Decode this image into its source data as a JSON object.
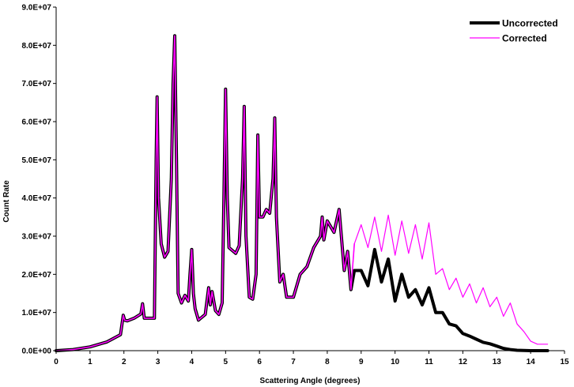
{
  "chart_data": {
    "type": "line",
    "title": "",
    "xlabel": "Scattering Angle (degrees)",
    "ylabel": "Count Rate",
    "xlim": [
      0,
      15
    ],
    "ylim": [
      0,
      90000000
    ],
    "x_ticks": [
      "0",
      "1",
      "2",
      "3",
      "4",
      "5",
      "6",
      "7",
      "8",
      "9",
      "10",
      "11",
      "12",
      "13",
      "14",
      "15"
    ],
    "y_ticks": [
      "0.0E+00",
      "1.0E+07",
      "2.0E+07",
      "3.0E+07",
      "4.0E+07",
      "5.0E+07",
      "6.0E+07",
      "7.0E+07",
      "8.0E+07",
      "9.0E+07"
    ],
    "grid": false,
    "legend_position": "top-right",
    "series": [
      {
        "name": "Uncorrected",
        "color": "#000000",
        "x": [
          0,
          0.5,
          1.0,
          1.5,
          1.9,
          1.98,
          2.02,
          2.1,
          2.3,
          2.5,
          2.55,
          2.6,
          2.9,
          2.95,
          2.98,
          3.02,
          3.1,
          3.2,
          3.3,
          3.4,
          3.45,
          3.5,
          3.55,
          3.6,
          3.7,
          3.8,
          3.9,
          3.95,
          4.0,
          4.05,
          4.1,
          4.2,
          4.4,
          4.5,
          4.55,
          4.6,
          4.7,
          4.8,
          4.9,
          4.95,
          5.0,
          5.05,
          5.1,
          5.3,
          5.4,
          5.5,
          5.55,
          5.6,
          5.7,
          5.8,
          5.9,
          5.95,
          6.0,
          6.1,
          6.2,
          6.3,
          6.4,
          6.45,
          6.5,
          6.6,
          6.7,
          6.8,
          7.0,
          7.2,
          7.4,
          7.6,
          7.8,
          7.85,
          7.9,
          8.0,
          8.2,
          8.35,
          8.5,
          8.6,
          8.7,
          8.8,
          9.0,
          9.2,
          9.4,
          9.6,
          9.8,
          10.0,
          10.2,
          10.4,
          10.6,
          10.8,
          11.0,
          11.2,
          11.4,
          11.6,
          11.8,
          12.0,
          12.2,
          12.4,
          12.6,
          12.8,
          13.0,
          13.2,
          13.4,
          13.6,
          13.8,
          14.0,
          14.2,
          14.5
        ],
        "y": [
          0,
          300000,
          1000000,
          2300000,
          4200000,
          9300000,
          8000000,
          7800000,
          8500000,
          9600000,
          12300000,
          8500000,
          8500000,
          50000000,
          66500000,
          40000000,
          28000000,
          24500000,
          26000000,
          45000000,
          70000000,
          82500000,
          50000000,
          15000000,
          12500000,
          14500000,
          13000000,
          20000000,
          26500000,
          15000000,
          11000000,
          8000000,
          9500000,
          16500000,
          12000000,
          15500000,
          10500000,
          9500000,
          12500000,
          40000000,
          68500000,
          40000000,
          27000000,
          25500000,
          27500000,
          45000000,
          64000000,
          30000000,
          14000000,
          13500000,
          20000000,
          56500000,
          35000000,
          35000000,
          37000000,
          36000000,
          45000000,
          61000000,
          35000000,
          18000000,
          20000000,
          14000000,
          14000000,
          20000000,
          22000000,
          27000000,
          30000000,
          35000000,
          29000000,
          34000000,
          31000000,
          37000000,
          21000000,
          26000000,
          16000000,
          21000000,
          21000000,
          17000000,
          26500000,
          18000000,
          24000000,
          13000000,
          20000000,
          14000000,
          16000000,
          12000000,
          16500000,
          10000000,
          10000000,
          7000000,
          6500000,
          4500000,
          3800000,
          3000000,
          2200000,
          1800000,
          1200000,
          600000,
          300000,
          100000,
          50000,
          0,
          0,
          0
        ]
      },
      {
        "name": "Corrected",
        "color": "#ff00ff",
        "x": [
          0,
          0.5,
          1.0,
          1.5,
          1.9,
          1.98,
          2.02,
          2.1,
          2.3,
          2.5,
          2.55,
          2.6,
          2.9,
          2.95,
          2.98,
          3.02,
          3.1,
          3.2,
          3.3,
          3.4,
          3.45,
          3.5,
          3.55,
          3.6,
          3.7,
          3.8,
          3.9,
          3.95,
          4.0,
          4.05,
          4.1,
          4.2,
          4.4,
          4.5,
          4.55,
          4.6,
          4.7,
          4.8,
          4.9,
          4.95,
          5.0,
          5.05,
          5.1,
          5.3,
          5.4,
          5.5,
          5.55,
          5.6,
          5.7,
          5.8,
          5.9,
          5.95,
          6.0,
          6.1,
          6.2,
          6.3,
          6.4,
          6.45,
          6.5,
          6.6,
          6.7,
          6.8,
          7.0,
          7.2,
          7.4,
          7.6,
          7.8,
          7.85,
          7.9,
          8.0,
          8.2,
          8.35,
          8.5,
          8.6,
          8.7,
          8.8,
          9.0,
          9.2,
          9.4,
          9.6,
          9.8,
          10.0,
          10.2,
          10.4,
          10.6,
          10.8,
          11.0,
          11.2,
          11.4,
          11.6,
          11.8,
          12.0,
          12.2,
          12.4,
          12.6,
          12.8,
          13.0,
          13.2,
          13.4,
          13.6,
          13.8,
          14.0,
          14.2,
          14.5
        ],
        "y": [
          0,
          300000,
          1000000,
          2300000,
          4200000,
          9300000,
          8000000,
          7800000,
          8500000,
          9600000,
          12300000,
          8500000,
          8500000,
          50000000,
          66500000,
          40000000,
          28000000,
          24500000,
          26000000,
          45000000,
          70000000,
          82500000,
          50000000,
          15000000,
          12500000,
          14500000,
          13000000,
          20000000,
          26500000,
          15000000,
          11000000,
          8000000,
          9500000,
          16500000,
          12000000,
          15500000,
          10500000,
          9500000,
          12500000,
          40000000,
          68500000,
          40000000,
          27000000,
          25500000,
          27500000,
          45000000,
          64000000,
          30000000,
          14000000,
          13500000,
          20000000,
          56500000,
          35000000,
          35000000,
          37000000,
          36000000,
          45000000,
          61000000,
          35000000,
          18000000,
          20000000,
          14000000,
          14000000,
          20000000,
          22000000,
          27000000,
          30000000,
          35000000,
          29000000,
          34000000,
          31000000,
          37000000,
          21000000,
          26000000,
          16000000,
          28000000,
          33000000,
          27000000,
          35000000,
          26000000,
          35500000,
          25000000,
          34000000,
          25500000,
          33000000,
          24000000,
          33500000,
          20000000,
          21500000,
          16000000,
          19000000,
          14000000,
          17500000,
          12500000,
          16500000,
          11500000,
          14000000,
          9000000,
          12500000,
          7000000,
          5000000,
          2500000,
          1700000,
          1700000
        ]
      }
    ]
  }
}
